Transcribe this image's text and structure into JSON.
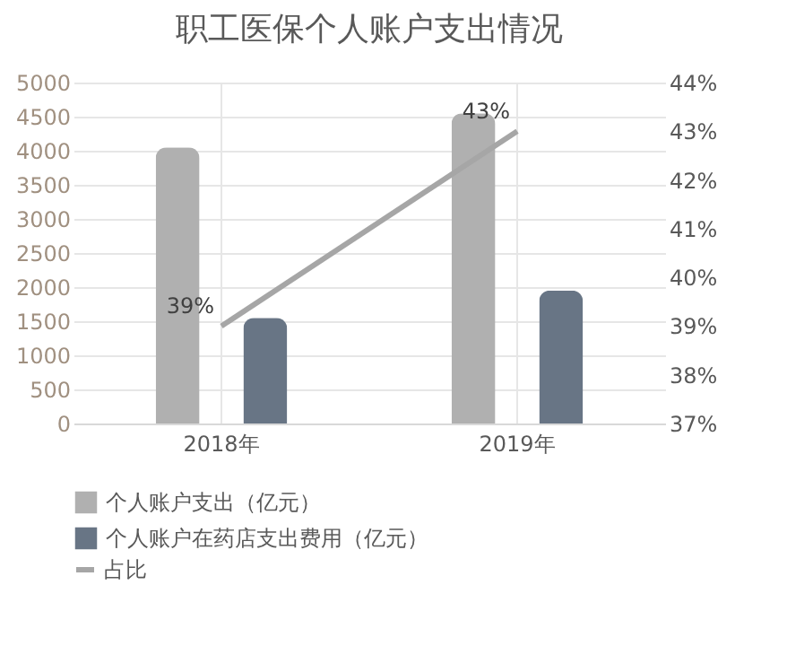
{
  "chart_data": {
    "type": "bar",
    "title": "职工医保个人账户支出情况",
    "categories": [
      "2018年",
      "2019年"
    ],
    "series": [
      {
        "name": "个人账户支出（亿元）",
        "color": "#b0b0b0",
        "values": [
          4050,
          4550
        ]
      },
      {
        "name": "个人账户在药店支出费用（亿元）",
        "color": "#687585",
        "values": [
          1550,
          1950
        ]
      },
      {
        "name": "占比",
        "type": "line",
        "axis": "y2",
        "color": "#a6a6a6",
        "values": [
          39,
          43
        ],
        "value_labels": [
          "39%",
          "43%"
        ]
      }
    ],
    "ylim": [
      0,
      5000
    ],
    "yticks": [
      0,
      500,
      1000,
      1500,
      2000,
      2500,
      3000,
      3500,
      4000,
      4500,
      5000
    ],
    "y2lim": [
      37,
      44
    ],
    "y2ticks": [
      {
        "value": 37,
        "label": "37%"
      },
      {
        "value": 38,
        "label": "38%"
      },
      {
        "value": 39,
        "label": "39%"
      },
      {
        "value": 40,
        "label": "40%"
      },
      {
        "value": 41,
        "label": "41%"
      },
      {
        "value": 42,
        "label": "42%"
      },
      {
        "value": 43,
        "label": "43%"
      },
      {
        "value": 44,
        "label": "44%"
      }
    ],
    "grid": true,
    "legend": "bottom"
  }
}
